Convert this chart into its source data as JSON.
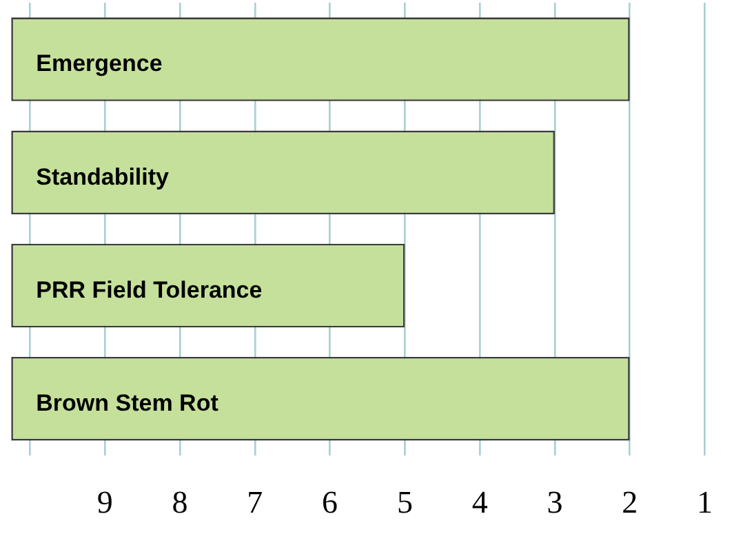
{
  "chart_data": {
    "type": "bar",
    "orientation": "horizontal",
    "categories": [
      "Emergence",
      "Standability",
      "PRR Field Tolerance",
      "Brown Stem Rot"
    ],
    "values": [
      -8.25,
      -7.25,
      -5.25,
      -8.25
    ],
    "base": [
      10.25,
      10.25,
      10.25,
      10.25
    ],
    "color": "#c5e09b",
    "xlim": [
      10.25,
      1
    ],
    "xticks": [
      {
        "value": 10,
        "label": null
      },
      9,
      8,
      7,
      6,
      5,
      4,
      3,
      2,
      1
    ],
    "grid": "x"
  }
}
